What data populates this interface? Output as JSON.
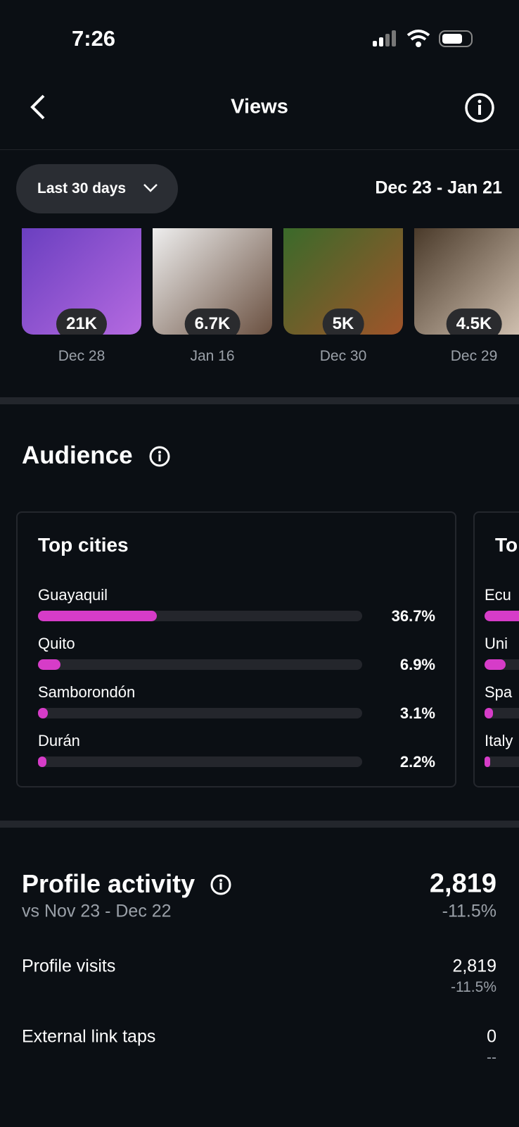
{
  "status_bar": {
    "time": "7:26"
  },
  "header": {
    "title": "Views"
  },
  "filter": {
    "period": "Last 30 days",
    "date_range": "Dec 23 - Jan 21"
  },
  "thumbnails": [
    {
      "views": "21K",
      "date": "Dec 28"
    },
    {
      "views": "6.7K",
      "date": "Jan 16"
    },
    {
      "views": "5K",
      "date": "Dec 30"
    },
    {
      "views": "4.5K",
      "date": "Dec 29"
    }
  ],
  "audience": {
    "title": "Audience",
    "top_cities": {
      "title": "Top cities",
      "cities": [
        "Guayaquil",
        "Quito",
        "Samborondón",
        "Durán"
      ],
      "values": [
        36.7,
        6.9,
        3.1,
        2.2
      ],
      "value_labels": [
        "36.7%",
        "6.9%",
        "3.1%",
        "2.2%"
      ]
    },
    "second_card": {
      "title": "To",
      "rows": [
        "Ecu",
        "Uni",
        "Spa",
        "Italy"
      ]
    }
  },
  "profile_activity": {
    "title": "Profile activity",
    "comparison": "vs Nov 23 - Dec 22",
    "total": "2,819",
    "change": "-11.5%",
    "rows": [
      {
        "label": "Profile visits",
        "value": "2,819",
        "change": "-11.5%"
      },
      {
        "label": "External link taps",
        "value": "0",
        "change": "--"
      }
    ]
  }
}
